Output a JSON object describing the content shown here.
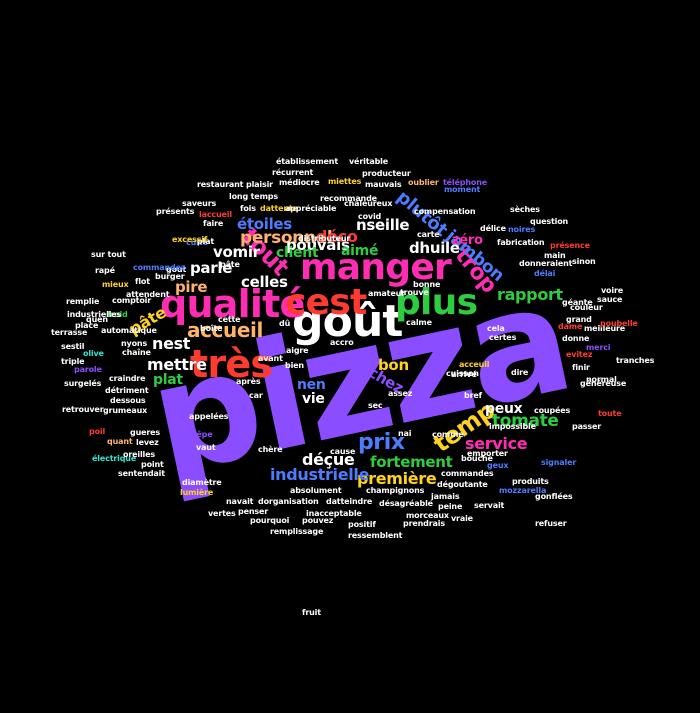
{
  "palette": {
    "background": "#000000",
    "purple": "#8a4dff",
    "green": "#2ecc40",
    "pink": "#ff2db3",
    "red": "#ff3b30",
    "blue": "#4f7bff",
    "cyan": "#2ee6d6",
    "yellow": "#ffd21f",
    "white": "#ffffff",
    "peach": "#ffb36b",
    "lightgreen": "#a8ff5a"
  },
  "words": [
    "pizza",
    "goût",
    "manger",
    "qualité",
    "très",
    "cest",
    "plus",
    "tout",
    "trop",
    "temp",
    "prix",
    "service",
    "jambon",
    "plutôt",
    "zéro",
    "déçue",
    "nest",
    "accueil",
    "personnel",
    "rapport",
    "tomate",
    "fortement",
    "première",
    "industrielle",
    "pouvais",
    "dhuile",
    "nseille",
    "déco",
    "aimé",
    "client",
    "étoiles",
    "vomir",
    "parle",
    "pire",
    "celles",
    "mettre",
    "pâte",
    "plat",
    "nen",
    "vie",
    "bon",
    "chez",
    "peux",
    "établissement",
    "véritable",
    "récurrent",
    "médiocre",
    "miettes",
    "producteur",
    "plaisir",
    "mauvais",
    "oublier",
    "restaurant",
    "chaleureux",
    "long temps",
    "saveurs",
    "sèches",
    "moment",
    "téléphone",
    "présents",
    "dattente",
    "fois",
    "appréciable",
    "covid",
    "compensation",
    "noires",
    "question",
    "carte",
    "fabrication",
    "délice",
    "laccueil",
    "cuite",
    "faire",
    "présence",
    "pâte",
    "plat",
    "excessif",
    "gout",
    "rapé",
    "sur tout",
    "commandez",
    "remplie",
    "terrasse",
    "place",
    "olive",
    "triple",
    "surgelés",
    "retrouver",
    "attendent",
    "froid",
    "automatique",
    "chaîne",
    "craindre",
    "dessous",
    "grumeaux",
    "poil",
    "quant",
    "électrique",
    "oreilles",
    "sentendait",
    "détriment",
    "flot",
    "comptoir",
    "quen",
    "industrielles",
    "sestil",
    "point",
    "levez",
    "navait",
    "diamètre",
    "lumière",
    "vertes",
    "penser",
    "pourquoi",
    "pouvez",
    "remplissage",
    "ressemblent",
    "dorganisation",
    "datteindre",
    "inacceptable",
    "absolument",
    "champignons",
    "désagréable",
    "morceaux",
    "positif",
    "prendrais",
    "vraie",
    "servait",
    "produits",
    "dégoutante",
    "mozzarella",
    "gonflées",
    "refuser",
    "commandes",
    "jamais",
    "peine",
    "bouche",
    "emporter",
    "geux",
    "signaler",
    "arrivé",
    "impossible",
    "coupées",
    "toute",
    "sauce",
    "géante",
    "grand",
    "donne",
    "donneraient",
    "main",
    "sinon",
    "délai",
    "meilleure",
    "dame",
    "merci",
    "evitez",
    "finir",
    "normal",
    "voire",
    "tranches",
    "passer",
    "trouve",
    "amateur",
    "bonne",
    "calme",
    "boîte",
    "dû",
    "aigre",
    "avant",
    "accro",
    "bien",
    "car",
    "après",
    "assez",
    "sec",
    "nai",
    "dire",
    "comme",
    "cause",
    "burger",
    "mieux",
    "gueres",
    "parole",
    "chère",
    "vaut",
    "crêpe",
    "appelées",
    "cette",
    "cela",
    "certes",
    "nyons",
    "cuisson",
    "bref",
    "acceuil",
    "fruit",
    "recommande",
    "distributeur",
    "généreuse",
    "poubelle",
    "couleur",
    "appelezvous",
    "savoir",
    "irrespectueux",
    "gaspiller",
    "coulent",
    "navons",
    "pizzeria",
    "commande",
    "badée",
    "mauvaise",
    "cune",
    "faisait",
    "mangé",
    "parler",
    "ment",
    "imprésentable",
    "facilement",
    "penser",
    "moyen",
    "tout"
  ]
}
